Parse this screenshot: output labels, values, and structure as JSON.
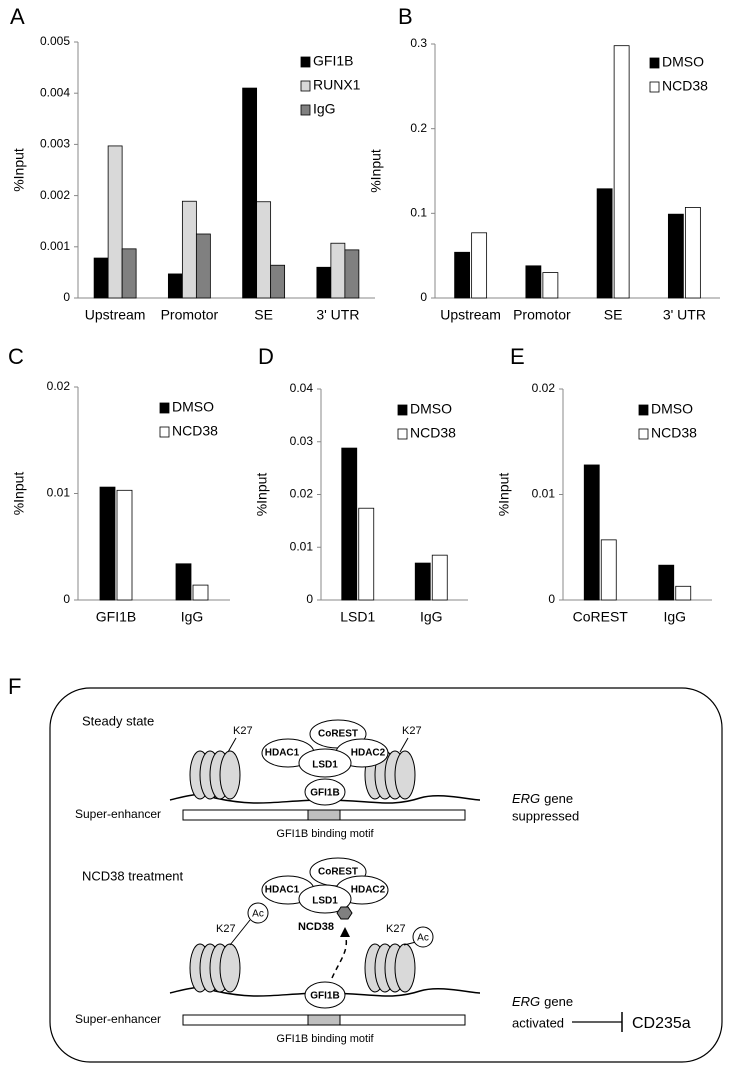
{
  "chart_data": [
    {
      "type": "bar",
      "panel": "A",
      "y_label": "%Input",
      "categories": [
        "Upstream",
        "Promotor",
        "SE",
        "3' UTR"
      ],
      "series": [
        {
          "name": "GFI1B",
          "color": "#000000",
          "values": [
            0.00078,
            0.00047,
            0.0041,
            0.0006
          ]
        },
        {
          "name": "RUNX1",
          "color": "#d9d9d9",
          "values": [
            0.00297,
            0.00189,
            0.00188,
            0.00107
          ]
        },
        {
          "name": "IgG",
          "color": "#808080",
          "values": [
            0.00096,
            0.00125,
            0.00064,
            0.00094
          ]
        }
      ],
      "ylim": [
        0,
        0.005
      ],
      "yticks": [
        0,
        0.001,
        0.002,
        0.003,
        0.004,
        0.005
      ],
      "legend": "upper-right"
    },
    {
      "type": "bar",
      "panel": "B",
      "y_label": "%Input",
      "categories": [
        "Upstream",
        "Promotor",
        "SE",
        "3' UTR"
      ],
      "series": [
        {
          "name": "DMSO",
          "color": "#000000",
          "values": [
            0.054,
            0.038,
            0.129,
            0.099
          ]
        },
        {
          "name": "NCD38",
          "color": "#ffffff",
          "values": [
            0.077,
            0.03,
            0.298,
            0.107
          ]
        }
      ],
      "ylim": [
        0,
        0.3
      ],
      "yticks": [
        0,
        0.1,
        0.2,
        0.3
      ],
      "legend": "upper-right"
    },
    {
      "type": "bar",
      "panel": "C",
      "y_label": "%Input",
      "categories": [
        "GFI1B",
        "IgG"
      ],
      "series": [
        {
          "name": "DMSO",
          "color": "#000000",
          "values": [
            0.0106,
            0.0034
          ]
        },
        {
          "name": "NCD38",
          "color": "#ffffff",
          "values": [
            0.0103,
            0.0014
          ]
        }
      ],
      "ylim": [
        0,
        0.02
      ],
      "yticks": [
        0,
        0.01,
        0.02
      ],
      "legend": "upper-right"
    },
    {
      "type": "bar",
      "panel": "D",
      "y_label": "%Input",
      "categories": [
        "LSD1",
        "IgG"
      ],
      "series": [
        {
          "name": "DMSO",
          "color": "#000000",
          "values": [
            0.0288,
            0.007
          ]
        },
        {
          "name": "NCD38",
          "color": "#ffffff",
          "values": [
            0.0174,
            0.0085
          ]
        }
      ],
      "ylim": [
        0,
        0.04
      ],
      "yticks": [
        0,
        0.01,
        0.02,
        0.03,
        0.04
      ],
      "legend": "upper-right"
    },
    {
      "type": "bar",
      "panel": "E",
      "y_label": "%Input",
      "categories": [
        "CoREST",
        "IgG"
      ],
      "series": [
        {
          "name": "DMSO",
          "color": "#000000",
          "values": [
            0.0128,
            0.0033
          ]
        },
        {
          "name": "NCD38",
          "color": "#ffffff",
          "values": [
            0.0057,
            0.0013
          ]
        }
      ],
      "ylim": [
        0,
        0.02
      ],
      "yticks": [
        0,
        0.01,
        0.02
      ],
      "legend": "upper-right"
    }
  ],
  "diagram": {
    "panel": "F",
    "steady": {
      "title": "Steady state",
      "k27_left": "K27",
      "k27_right": "K27",
      "corest": "CoREST",
      "hdac1": "HDAC1",
      "hdac2": "HDAC2",
      "lsd1": "LSD1",
      "gfi1b": "GFI1B",
      "enhancer": "Super-enhancer",
      "motif": "GFI1B binding motif",
      "gene_name": "ERG",
      "gene": "gene",
      "status": "suppressed"
    },
    "treated": {
      "title": "NCD38 treatment",
      "corest": "CoREST",
      "hdac1": "HDAC1",
      "hdac2": "HDAC2",
      "lsd1": "LSD1",
      "drug": "NCD38",
      "k27_left": "K27",
      "ac_left": "Ac",
      "k27_right": "K27",
      "ac_right": "Ac",
      "gfi1b": "GFI1B",
      "enhancer": "Super-enhancer",
      "motif": "GFI1B binding motif",
      "gene_name": "ERG",
      "gene": "gene",
      "status": "activated",
      "target": "CD235a"
    }
  }
}
